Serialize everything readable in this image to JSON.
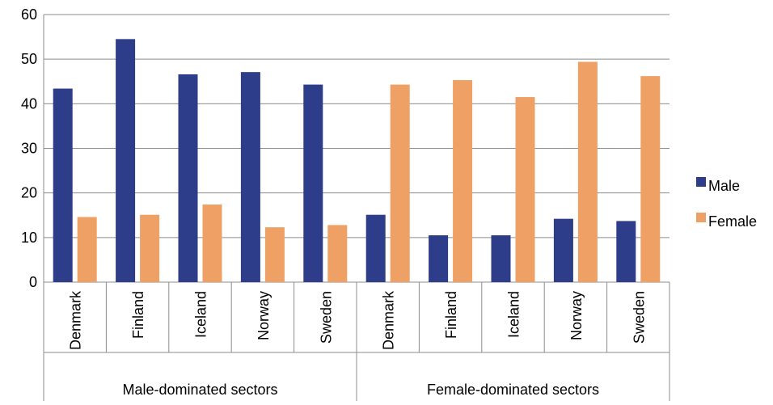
{
  "chart_data": {
    "type": "bar",
    "title": "",
    "xlabel": "",
    "ylabel": "",
    "ylim": [
      0,
      60
    ],
    "yticks": [
      "0",
      "10",
      "20",
      "30",
      "40",
      "50",
      "60"
    ],
    "grid": true,
    "legend_position": "right",
    "groups": [
      {
        "label": "Male-dominated sectors",
        "categories": [
          "Denmark",
          "Finland",
          "Iceland",
          "Norway",
          "Sweden"
        ]
      },
      {
        "label": "Female-dominated sectors",
        "categories": [
          "Denmark",
          "Finland",
          "Iceland",
          "Norway",
          "Sweden"
        ]
      }
    ],
    "categories": [
      "Denmark",
      "Finland",
      "Iceland",
      "Norway",
      "Sweden",
      "Denmark",
      "Finland",
      "Iceland",
      "Norway",
      "Sweden"
    ],
    "series": [
      {
        "name": "Male",
        "color": "#2E3D8A",
        "values": [
          43.4,
          54.5,
          46.6,
          47.1,
          44.3,
          15.1,
          10.5,
          10.5,
          14.2,
          13.7
        ]
      },
      {
        "name": "Female",
        "color": "#EFA065",
        "values": [
          14.6,
          15.1,
          17.4,
          12.3,
          12.8,
          44.3,
          45.3,
          41.5,
          49.4,
          46.2
        ]
      }
    ]
  }
}
